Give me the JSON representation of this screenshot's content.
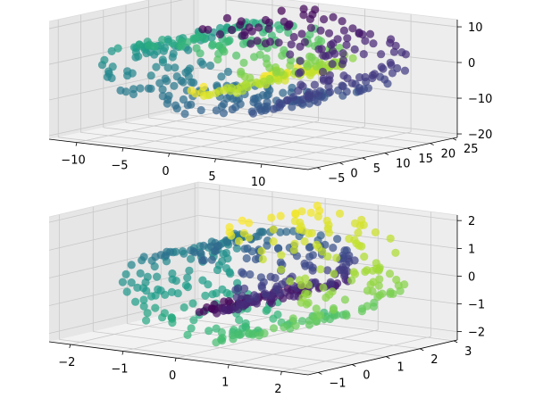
{
  "colors": {
    "pane_left": "#e6e6e6",
    "pane_right": "#ededed",
    "pane_floor": "#f2f2f2",
    "grid": "#c8c8c8",
    "axis_line": "#000000",
    "colormap": "viridis"
  },
  "chart_data": [
    {
      "type": "scatter",
      "title": "",
      "xlabel": "",
      "ylabel": "",
      "zlabel": "",
      "projection": "3d",
      "point_count": 500,
      "grid": true,
      "shape": "swiss roll (spiral band)",
      "color_by": "position along spiral",
      "x_ticks": [
        "−10",
        "−5",
        "0",
        "5",
        "10"
      ],
      "y_ticks": [
        "−5",
        "0",
        "5",
        "10",
        "15",
        "20",
        "25"
      ],
      "z_ticks": [
        "−20",
        "−10",
        "0",
        "10"
      ],
      "xlim": [
        -13,
        15
      ],
      "ylim": [
        -7,
        26
      ],
      "zlim": [
        -21,
        12
      ],
      "series": [
        {
          "marker_color": "viridis",
          "points_sampled_along_spiral": true
        }
      ]
    },
    {
      "type": "scatter",
      "title": "",
      "xlabel": "",
      "ylabel": "",
      "zlabel": "",
      "projection": "3d",
      "point_count": 500,
      "grid": true,
      "shape": "standardized swiss roll",
      "color_by": "position along spiral",
      "x_ticks": [
        "−2",
        "−1",
        "0",
        "1",
        "2"
      ],
      "y_ticks": [
        "−1",
        "0",
        "1",
        "2",
        "3"
      ],
      "z_ticks": [
        "−2",
        "−1",
        "0",
        "1",
        "2"
      ],
      "xlim": [
        -2.4,
        2.5
      ],
      "ylim": [
        -1.3,
        3.1
      ],
      "zlim": [
        -2.3,
        2.2
      ],
      "series": [
        {
          "marker_color": "viridis",
          "points_sampled_along_spiral": true
        }
      ]
    }
  ]
}
